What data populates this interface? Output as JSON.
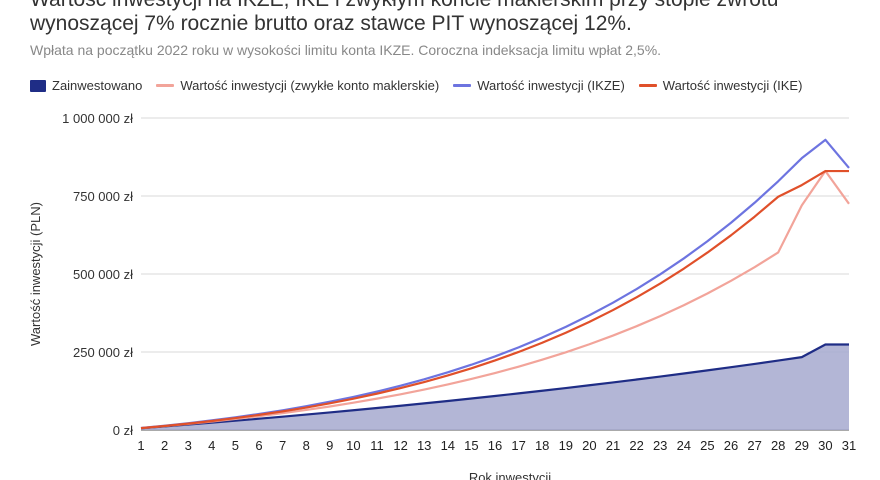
{
  "chart_data": {
    "type": "line",
    "title": "Wartość inwestycji na IKZE, IKE i zwykłym koncie maklerskim przy stopie zwrotu\nwynoszącej 7% rocznie brutto oraz stawce PIT wynoszącej 12%.",
    "subtitle": "Wpłata na początku 2022 roku w wysokości limitu konta IKZE. Coroczna indeksacja limitu wpłat 2,5%.",
    "xlabel": "Rok inwestycji",
    "ylabel": "Wartość inwestycji (PLN)",
    "ylim": [
      0,
      1000000
    ],
    "y_ticks": [
      {
        "value": 0,
        "label": "0 zł"
      },
      {
        "value": 250000,
        "label": "250 000 zł"
      },
      {
        "value": 500000,
        "label": "500 000 zł"
      },
      {
        "value": 750000,
        "label": "750 000 zł"
      },
      {
        "value": 1000000,
        "label": "1 000 000 zł"
      }
    ],
    "x": [
      1,
      2,
      3,
      4,
      5,
      6,
      7,
      8,
      9,
      10,
      11,
      12,
      13,
      14,
      15,
      16,
      17,
      18,
      19,
      20,
      21,
      22,
      23,
      24,
      25,
      26,
      27,
      28,
      29,
      30,
      31
    ],
    "grid": true,
    "legend_position": "top",
    "series": [
      {
        "name": "Zainwestowano",
        "type": "area",
        "color": "#1f2d86",
        "fill": "#a6a9cf",
        "values": [
          5700,
          11500,
          17500,
          23600,
          29800,
          36200,
          42700,
          49400,
          56300,
          63300,
          70500,
          77800,
          85300,
          93000,
          100900,
          109000,
          117300,
          125800,
          134500,
          143400,
          152500,
          161800,
          171300,
          181100,
          191100,
          201300,
          211800,
          222600,
          233600,
          274000,
          274000
        ]
      },
      {
        "name": "Wartość inwestycji (zwykłe konto maklerskie)",
        "type": "line",
        "color": "#f2a49a",
        "values": [
          6100,
          12600,
          19600,
          27200,
          35400,
          44300,
          53900,
          64300,
          75400,
          87500,
          100500,
          114500,
          129700,
          146000,
          163600,
          182600,
          203100,
          225200,
          249100,
          274900,
          302700,
          332700,
          365000,
          399900,
          437500,
          478100,
          521900,
          569100,
          720000,
          830000,
          725000
        ]
      },
      {
        "name": "Wartość inwestycji (IKZE)",
        "type": "line",
        "color": "#6d74e0",
        "values": [
          6600,
          13900,
          21900,
          30800,
          40600,
          51400,
          63200,
          76200,
          90500,
          106100,
          123200,
          141900,
          162400,
          184800,
          209200,
          235800,
          264800,
          296300,
          330600,
          367800,
          408100,
          451700,
          498900,
          549900,
          604900,
          664300,
          728300,
          797200,
          871300,
          930000,
          840000
        ]
      },
      {
        "name": "Wartość inwestycji (IKE)",
        "type": "line",
        "color": "#e0502a",
        "values": [
          6100,
          12900,
          20500,
          28900,
          38200,
          48400,
          59700,
          72000,
          85600,
          100400,
          116600,
          134300,
          153700,
          174800,
          197800,
          222900,
          250100,
          279700,
          311800,
          346700,
          384400,
          425300,
          469500,
          517200,
          568600,
          624000,
          683600,
          747600,
          785000,
          830000,
          830000
        ]
      }
    ]
  }
}
